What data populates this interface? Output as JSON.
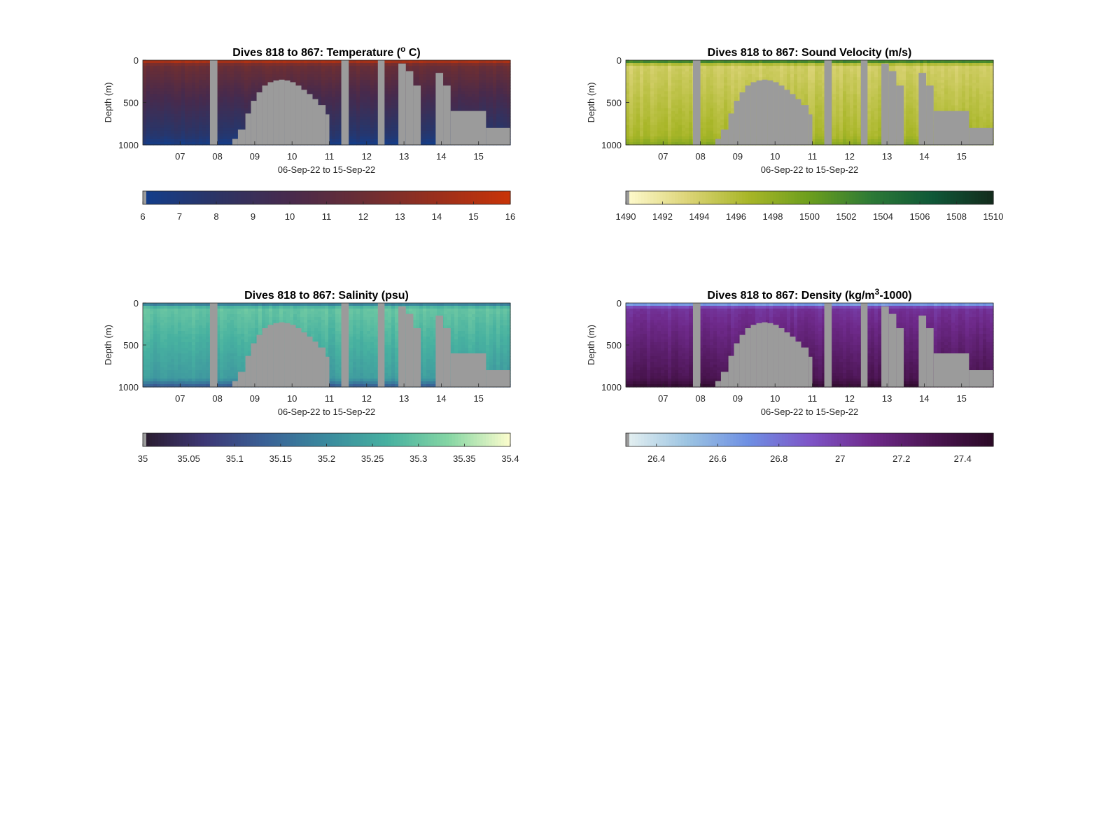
{
  "chart_data": [
    {
      "type": "heatmap",
      "title": "Dives 818 to 867: Temperature (",
      "title_sup": "o",
      "title_after": " C)",
      "ylabel": "Depth (m)",
      "xlabel": "06-Sep-22 to 15-Sep-22",
      "ylim": [
        1000,
        0
      ],
      "y_ticks": [
        "0",
        "500",
        "1000"
      ],
      "x_ticks": [
        "07",
        "08",
        "09",
        "10",
        "11",
        "12",
        "13",
        "14",
        "15"
      ],
      "colorbar": {
        "min": 6,
        "max": 16,
        "ticks": [
          "6",
          "7",
          "8",
          "9",
          "10",
          "11",
          "12",
          "13",
          "14",
          "15",
          "16"
        ],
        "colors": [
          "#123e8c",
          "#2c3465",
          "#482a4c",
          "#6b2e34",
          "#9a2f1c",
          "#c93407"
        ]
      },
      "profile": {
        "surface": 15.5,
        "upper": 12.0,
        "deep": 7.5,
        "bottom": 6.3
      }
    },
    {
      "type": "heatmap",
      "title": "Dives 818 to 867: Sound Velocity (m/s)",
      "ylabel": "Depth (m)",
      "xlabel": "06-Sep-22 to 15-Sep-22",
      "ylim": [
        1000,
        0
      ],
      "y_ticks": [
        "0",
        "500",
        "1000"
      ],
      "x_ticks": [
        "07",
        "08",
        "09",
        "10",
        "11",
        "12",
        "13",
        "14",
        "15"
      ],
      "colorbar": {
        "min": 1490,
        "max": 1510,
        "ticks": [
          "1490",
          "1492",
          "1494",
          "1496",
          "1498",
          "1500",
          "1502",
          "1504",
          "1506",
          "1508",
          "1510"
        ],
        "colors": [
          "#fffbcf",
          "#dcd478",
          "#a8b628",
          "#6c9e1d",
          "#2d7a36",
          "#0f5838",
          "#132b1c"
        ]
      },
      "profile": {
        "surface": 1505,
        "upper": 1494,
        "deep": 1496.5,
        "bottom": 1498.5
      }
    },
    {
      "type": "heatmap",
      "title": "Dives 818 to 867: Salinity (psu)",
      "ylabel": "Depth (m)",
      "xlabel": "06-Sep-22 to 15-Sep-22",
      "ylim": [
        1000,
        0
      ],
      "y_ticks": [
        "0",
        "500",
        "1000"
      ],
      "x_ticks": [
        "07",
        "08",
        "09",
        "10",
        "11",
        "12",
        "13",
        "14",
        "15"
      ],
      "colorbar": {
        "min": 35,
        "max": 35.4,
        "ticks": [
          "35",
          "35.05",
          "35.1",
          "35.15",
          "35.2",
          "35.25",
          "35.3",
          "35.35",
          "35.4"
        ],
        "colors": [
          "#2a1b2d",
          "#3d3775",
          "#3a6196",
          "#3a8a9e",
          "#47b1a0",
          "#86d6a4",
          "#fdfdcd"
        ]
      },
      "profile": {
        "surface": 35.15,
        "upper": 35.3,
        "deep": 35.23,
        "bottom": 35.12
      }
    },
    {
      "type": "heatmap",
      "title": "Dives 818 to 867: Density (kg/m",
      "title_sup": "3",
      "title_after": "-1000)",
      "ylabel": "Depth (m)",
      "xlabel": "06-Sep-22 to 15-Sep-22",
      "ylim": [
        1000,
        0
      ],
      "y_ticks": [
        "0",
        "500",
        "1000"
      ],
      "x_ticks": [
        "07",
        "08",
        "09",
        "10",
        "11",
        "12",
        "13",
        "14",
        "15"
      ],
      "colorbar": {
        "min": 26.3,
        "max": 27.5,
        "ticks": [
          "26.4",
          "26.6",
          "26.8",
          "27",
          "27.2",
          "27.4"
        ],
        "colors": [
          "#e6f1f1",
          "#9cc4e2",
          "#6e8fe3",
          "#7e55c7",
          "#6f2a8c",
          "#4b1552",
          "#2b0a26"
        ]
      },
      "profile": {
        "surface": 26.5,
        "upper": 27.05,
        "deep": 27.3,
        "bottom": 27.45
      }
    }
  ],
  "data_gaps": {
    "x_range_days": [
      6.0,
      15.85
    ],
    "columns": [
      {
        "from": 7.8,
        "to": 8.0,
        "bottom_m": 0
      },
      {
        "from": 8.4,
        "to": 8.55,
        "bottom_m": 930
      },
      {
        "from": 8.55,
        "to": 8.75,
        "bottom_m": 820
      },
      {
        "from": 8.75,
        "to": 8.9,
        "bottom_m": 630
      },
      {
        "from": 8.9,
        "to": 9.05,
        "bottom_m": 480
      },
      {
        "from": 9.05,
        "to": 9.2,
        "bottom_m": 380
      },
      {
        "from": 9.2,
        "to": 9.35,
        "bottom_m": 300
      },
      {
        "from": 9.35,
        "to": 9.5,
        "bottom_m": 260
      },
      {
        "from": 9.5,
        "to": 9.65,
        "bottom_m": 240
      },
      {
        "from": 9.65,
        "to": 9.8,
        "bottom_m": 230
      },
      {
        "from": 9.8,
        "to": 9.95,
        "bottom_m": 240
      },
      {
        "from": 9.95,
        "to": 10.1,
        "bottom_m": 260
      },
      {
        "from": 10.1,
        "to": 10.25,
        "bottom_m": 300
      },
      {
        "from": 10.25,
        "to": 10.4,
        "bottom_m": 350
      },
      {
        "from": 10.4,
        "to": 10.55,
        "bottom_m": 400
      },
      {
        "from": 10.55,
        "to": 10.7,
        "bottom_m": 460
      },
      {
        "from": 10.7,
        "to": 10.9,
        "bottom_m": 530
      },
      {
        "from": 10.9,
        "to": 11.0,
        "bottom_m": 640
      },
      {
        "from": 11.32,
        "to": 11.52,
        "bottom_m": 0
      },
      {
        "from": 12.3,
        "to": 12.48,
        "bottom_m": 0
      },
      {
        "from": 12.85,
        "to": 13.05,
        "bottom_m": 40
      },
      {
        "from": 13.05,
        "to": 13.25,
        "bottom_m": 130
      },
      {
        "from": 13.25,
        "to": 13.45,
        "bottom_m": 300
      },
      {
        "from": 13.85,
        "to": 14.05,
        "bottom_m": 150
      },
      {
        "from": 14.05,
        "to": 14.25,
        "bottom_m": 300
      },
      {
        "from": 14.25,
        "to": 15.2,
        "bottom_m": 600
      },
      {
        "from": 15.2,
        "to": 15.85,
        "bottom_m": 800
      }
    ]
  },
  "no_data_color": "#9b9b9b"
}
